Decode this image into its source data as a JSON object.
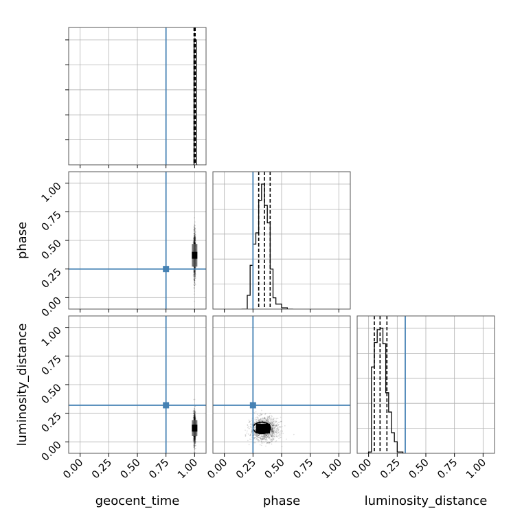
{
  "chart_data": {
    "type": "corner",
    "parameters": [
      "geocent_time",
      "phase",
      "luminosity_distance"
    ],
    "axis_labels": {
      "geocent_time": "geocent_time",
      "phase": "phase",
      "luminosity_distance": "luminosity_distance"
    },
    "xlim": [
      -0.1,
      1.1
    ],
    "ylim": [
      -0.1,
      1.1
    ],
    "ticks": [
      0.0,
      0.25,
      0.5,
      0.75,
      1.0
    ],
    "tick_labels": [
      "0.00",
      "0.25",
      "0.50",
      "0.75",
      "1.00"
    ],
    "grid": true,
    "truths": {
      "geocent_time": 0.75,
      "phase": 0.25,
      "luminosity_distance": 0.32
    },
    "truth_color": "#4682b4",
    "quantiles": {
      "geocent_time": [
        0.995,
        1.0,
        1.005
      ],
      "phase": [
        0.3,
        0.35,
        0.4
      ],
      "luminosity_distance": [
        0.05,
        0.1,
        0.16
      ]
    },
    "histograms": {
      "geocent_time": {
        "edges": [
          0.985,
          0.995,
          1.005,
          1.015,
          1.025
        ],
        "counts": [
          0.0,
          1.0,
          1.0,
          0.0
        ]
      },
      "phase": {
        "edges": [
          0.15,
          0.2,
          0.225,
          0.25,
          0.275,
          0.3,
          0.325,
          0.35,
          0.375,
          0.4,
          0.425,
          0.45,
          0.475,
          0.5,
          0.525,
          0.55,
          0.575,
          0.6
        ],
        "counts": [
          0.0,
          0.11,
          0.35,
          0.52,
          0.61,
          0.87,
          1.0,
          0.83,
          0.69,
          0.32,
          0.09,
          0.04,
          0.04,
          0.01,
          0.01,
          0.0,
          0.0
        ]
      },
      "luminosity_distance": {
        "edges": [
          -0.02,
          0.0,
          0.025,
          0.05,
          0.075,
          0.1,
          0.125,
          0.15,
          0.175,
          0.2,
          0.225,
          0.25,
          0.275,
          0.3
        ],
        "counts": [
          0.0,
          0.01,
          0.67,
          0.86,
          0.96,
          0.97,
          0.85,
          0.47,
          0.32,
          0.16,
          0.09,
          0.01,
          0.01
        ]
      }
    },
    "scatter_2d": [
      {
        "x_param": "geocent_time",
        "y_param": "phase",
        "center": [
          1.0,
          0.37
        ],
        "spread": [
          0.004,
          0.1
        ]
      },
      {
        "x_param": "geocent_time",
        "y_param": "luminosity_distance",
        "center": [
          1.0,
          0.12
        ],
        "spread": [
          0.004,
          0.07
        ]
      },
      {
        "x_param": "phase",
        "y_param": "luminosity_distance",
        "center": [
          0.35,
          0.11
        ],
        "spread": [
          0.06,
          0.05
        ]
      }
    ]
  }
}
